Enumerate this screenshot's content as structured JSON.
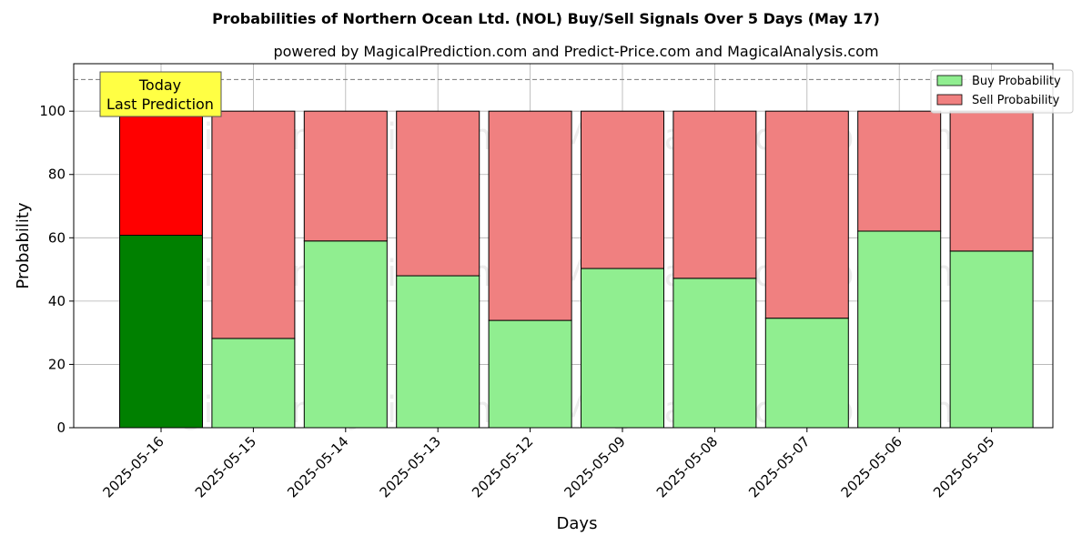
{
  "chart_data": {
    "type": "bar",
    "stacked": true,
    "title": "Probabilities of Northern Ocean Ltd. (NOL) Buy/Sell Signals Over 5 Days (May 17)",
    "subtitle": "powered by MagicalPrediction.com and Predict-Price.com and MagicalAnalysis.com",
    "xlabel": "Days",
    "ylabel": "Probability",
    "ylim": [
      0,
      115
    ],
    "yticks": [
      "0",
      "20",
      "40",
      "60",
      "80",
      "100"
    ],
    "categories": [
      "2025-05-16",
      "2025-05-15",
      "2025-05-14",
      "2025-05-13",
      "2025-05-12",
      "2025-05-09",
      "2025-05-08",
      "2025-05-07",
      "2025-05-06",
      "2025-05-05"
    ],
    "series": [
      {
        "name": "Buy Probability",
        "color": "#90ee90",
        "highlight_color": "#008000",
        "values": [
          60.8,
          28.2,
          59.0,
          48.0,
          33.9,
          50.3,
          47.2,
          34.6,
          62.1,
          55.8
        ]
      },
      {
        "name": "Sell Probability",
        "color": "#f08080",
        "highlight_color": "#ff0000",
        "values": [
          39.2,
          71.8,
          41.0,
          52.0,
          66.1,
          49.7,
          52.8,
          65.4,
          37.9,
          44.2
        ]
      }
    ],
    "highlight_index": 0,
    "reference_line": 110,
    "annotation": {
      "line1": "Today",
      "line2": "Last Prediction",
      "color": "#ffff44"
    },
    "legend_position": "top-right",
    "grid": true,
    "watermarks": [
      "MagicalAnalysis.com",
      "MagicalPrediction.com"
    ]
  }
}
